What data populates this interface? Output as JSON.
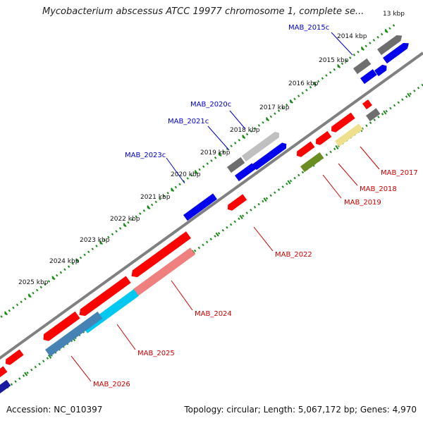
{
  "title": "Mycobacterium abscessus ATCC 19977 chromosome 1, complete se...",
  "footer": {
    "accession": "Accession: NC_010397",
    "summary": "Topology: circular; Length: 5,067,172 bp; Genes: 4,970"
  },
  "ticks": [
    "13 kbp",
    "2014 kbp",
    "2015 kbp",
    "2016 kbp",
    "2017 kbp",
    "2018 kbp",
    "2019 kbp",
    "2020 kbp",
    "2021 kbp",
    "2022 kbp",
    "2023 kbp",
    "2024 kbp",
    "2025 kbp"
  ],
  "forward_labels": [
    "MAB_2015c",
    "MAB_2020c",
    "MAB_2021c",
    "MAB_2023c"
  ],
  "reverse_labels": [
    "MAB_2017",
    "MAB_2018",
    "MAB_2019",
    "MAB_2022",
    "MAB_2024",
    "MAB_2025",
    "MAB_2026"
  ],
  "colors": {
    "forward_label": "#0000cc",
    "reverse_label": "#cc0000",
    "backbone": "#808080",
    "dots": "#1a8a1a",
    "red": "#ff0000",
    "pink": "#f08080",
    "blue": "#0000ee",
    "cyan": "#00c8f0",
    "steel": "#4682b4",
    "gray": "#6e6e6e",
    "light_gray": "#c0c0c0",
    "olive": "#6b8e23",
    "khaki": "#eee08c",
    "navy": "#1a1aa0"
  }
}
